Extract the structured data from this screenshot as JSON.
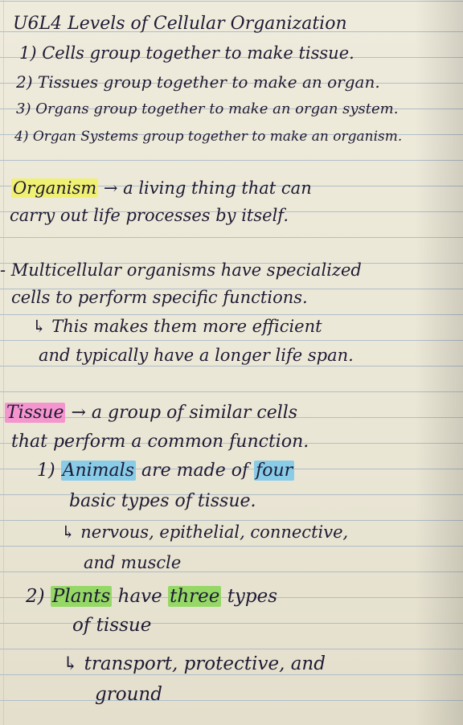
{
  "title": "U6L4 Levels of Cellular Organization",
  "levels": [
    "1) Cells group together to make tissue.",
    "2) Tissues group together to make an organ.",
    "3) Organs group together to make an organ system.",
    "4) Organ Systems group together to make an organism."
  ],
  "organism": {
    "term": "Organism",
    "arrow": "→",
    "def_line1": "a living thing that can",
    "def_line2": "carry out life processes by itself."
  },
  "multicellular": {
    "line1": "- Multicellular organisms have specialized",
    "line2": "cells to perform specific functions.",
    "line3": "↳ This makes them more efficient",
    "line4": "and typically have a longer life span."
  },
  "tissue": {
    "term": "Tissue",
    "arrow": "→",
    "def_line1": "a group of similar cells",
    "def_line2": "that perform a common function.",
    "animals": {
      "num": "1)",
      "subject": "Animals",
      "mid": "are made of",
      "count": "four",
      "line2": "basic types of tissue.",
      "types_line1": "↳ nervous, epithelial, connective,",
      "types_line2": "and muscle"
    },
    "plants": {
      "num": "2)",
      "subject": "Plants",
      "mid": "have",
      "count": "three",
      "after": "types",
      "line2": "of tissue",
      "types_line1": "↳ transport, protective, and",
      "types_line2": "ground"
    }
  },
  "colors": {
    "ink": "#1e1a33",
    "highlight_yellow": "#f0f06e",
    "highlight_pink": "#f58ccd",
    "highlight_blue": "#78c8eb",
    "highlight_green": "#8cd75a"
  }
}
